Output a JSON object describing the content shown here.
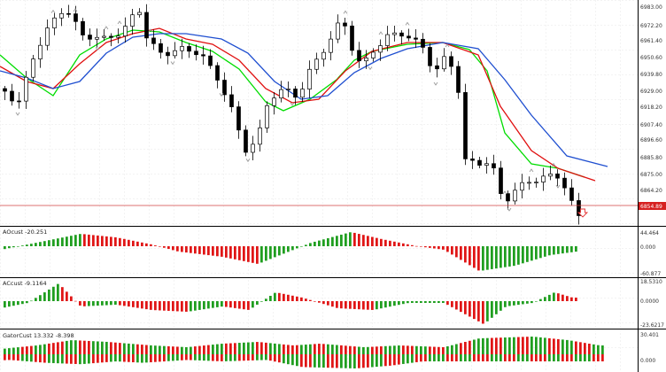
{
  "colors": {
    "background": "#ffffff",
    "grid": "#c8c8c8",
    "separator": "#000000",
    "candle": "#000000",
    "up_candle_fill": "#ffffff",
    "down_candle_fill": "#000000",
    "alligator_lips": "#00dd00",
    "alligator_teeth": "#e01010",
    "alligator_jaw": "#1f4fd0",
    "histogram_up": "#1f9e1f",
    "histogram_down": "#e01515",
    "price_line": "#d04040",
    "price_label_bg": "#d62020",
    "price_label_text": "#ffffff",
    "fractal": "#9a9a9a",
    "sell_arrow": "#e53030"
  },
  "icons": {
    "fractal_marker": "fractal-arrow-icon",
    "signal_arrow": "sell-arrow-icon"
  },
  "main_chart": {
    "axis_labels": [
      "6983.00",
      "6972.20",
      "6961.40",
      "6950.60",
      "6939.80",
      "6929.00",
      "6918.20",
      "6907.40",
      "6896.60",
      "6885.80",
      "6875.00",
      "6864.20"
    ],
    "current_price": "6854.89"
  },
  "indicators": [
    {
      "title": "AOcust -20.251",
      "axis_labels": [
        "44.464",
        "0.000",
        "-60.877"
      ]
    },
    {
      "title": "ACcust -9.1164",
      "axis_labels": [
        "18.5310",
        "0.0000",
        "-23.6217"
      ]
    },
    {
      "title": "GatorCust 13.332 -8.398",
      "axis_labels": [
        "30.401",
        "0.000"
      ]
    }
  ]
}
